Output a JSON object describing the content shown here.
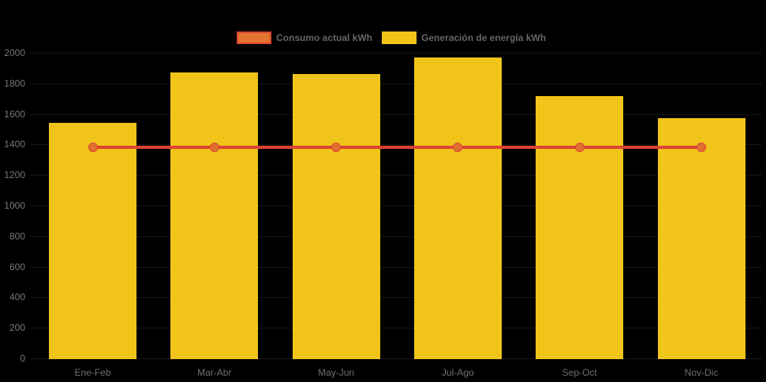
{
  "chart_data": {
    "type": "bar",
    "title": "",
    "categories": [
      "Ene-Feb",
      "Mar-Abr",
      "May-Jun",
      "Jul-Ago",
      "Sep-Oct",
      "Nov-Dic"
    ],
    "series": [
      {
        "name": "Consumo actual kWh",
        "type": "line",
        "color": "#DD4434",
        "marker_color": "#E0702F",
        "values": [
          1380,
          1380,
          1380,
          1380,
          1380,
          1380
        ]
      },
      {
        "name": "Generación de energía kWh",
        "type": "bar",
        "color": "#F0C419",
        "values": [
          1540,
          1870,
          1860,
          1970,
          1715,
          1570
        ]
      }
    ],
    "xlabel": "",
    "ylabel": "",
    "ylim": [
      0,
      2000
    ],
    "ytick_step": 200,
    "ytick_labels": [
      "0",
      "200",
      "400",
      "600",
      "800",
      "1000",
      "1200",
      "1400",
      "1600",
      "1800",
      "2000"
    ],
    "legend_position": "top",
    "grid": false,
    "background_color": "#000000",
    "axis_text_color": "#777777",
    "legend_text_color": "#666666"
  }
}
